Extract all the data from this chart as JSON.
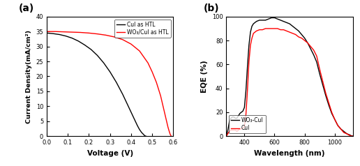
{
  "panel_a": {
    "title": "(a)",
    "xlabel": "Voltage (V)",
    "ylabel": "Current Density(mA/cm²)",
    "xlim": [
      0.0,
      0.6
    ],
    "ylim": [
      0,
      40
    ],
    "xticks": [
      0.0,
      0.1,
      0.2,
      0.3,
      0.4,
      0.5,
      0.6
    ],
    "yticks": [
      0,
      5,
      10,
      15,
      20,
      25,
      30,
      35,
      40
    ],
    "legend": [
      "CuI as HTL",
      "WO₃/CuI as HTL"
    ],
    "line_colors": [
      "black",
      "red"
    ],
    "cui_jv": {
      "v": [
        0.0,
        0.03,
        0.06,
        0.09,
        0.12,
        0.15,
        0.18,
        0.21,
        0.24,
        0.27,
        0.3,
        0.33,
        0.36,
        0.39,
        0.41,
        0.43,
        0.44,
        0.45,
        0.46,
        0.465,
        0.47
      ],
      "j": [
        34.5,
        34.3,
        34.0,
        33.5,
        32.8,
        31.8,
        30.5,
        29.0,
        27.0,
        24.5,
        21.5,
        18.0,
        14.0,
        9.5,
        6.5,
        3.5,
        2.2,
        1.2,
        0.5,
        0.1,
        0.0
      ]
    },
    "wo3cui_jv": {
      "v": [
        0.0,
        0.04,
        0.08,
        0.12,
        0.16,
        0.2,
        0.24,
        0.28,
        0.32,
        0.36,
        0.4,
        0.44,
        0.48,
        0.5,
        0.52,
        0.54,
        0.55,
        0.56,
        0.57,
        0.575,
        0.58,
        0.585,
        0.59
      ],
      "j": [
        35.0,
        35.0,
        34.9,
        34.8,
        34.7,
        34.5,
        34.2,
        33.8,
        33.2,
        32.3,
        30.8,
        28.5,
        24.5,
        21.5,
        18.0,
        13.5,
        10.5,
        7.5,
        4.5,
        3.0,
        1.8,
        0.7,
        0.0
      ]
    }
  },
  "panel_b": {
    "title": "(b)",
    "xlabel": "Wavelength (nm)",
    "ylabel": "EQE (%)",
    "xlim": [
      280,
      1120
    ],
    "ylim": [
      0,
      100
    ],
    "xticks": [
      400,
      600,
      800,
      1000
    ],
    "yticks": [
      0,
      20,
      40,
      60,
      80,
      100
    ],
    "legend": [
      "WO₃-CuI",
      "CuI"
    ],
    "line_colors": [
      "black",
      "red"
    ],
    "wo3cui_eqe": {
      "wl": [
        280,
        290,
        300,
        310,
        320,
        330,
        340,
        350,
        360,
        370,
        380,
        390,
        400,
        410,
        420,
        430,
        440,
        450,
        460,
        480,
        500,
        520,
        540,
        560,
        580,
        600,
        620,
        640,
        660,
        680,
        700,
        720,
        740,
        760,
        780,
        800,
        820,
        840,
        860,
        880,
        900,
        920,
        940,
        960,
        980,
        1000,
        1020,
        1040,
        1060,
        1080,
        1100,
        1110,
        1120
      ],
      "eqe": [
        0,
        5,
        12,
        15,
        16,
        16,
        15,
        15,
        17,
        19,
        20,
        21,
        24,
        38,
        58,
        76,
        87,
        92,
        94,
        96,
        97,
        97,
        97,
        98,
        99,
        99,
        98,
        97,
        96,
        95,
        94,
        92,
        90,
        88,
        85,
        82,
        78,
        73,
        68,
        62,
        52,
        43,
        34,
        26,
        19,
        14,
        9,
        6,
        4,
        2,
        1,
        0.3,
        0
      ]
    },
    "cui_eqe": {
      "wl": [
        280,
        290,
        300,
        310,
        320,
        330,
        340,
        350,
        360,
        370,
        380,
        390,
        400,
        410,
        420,
        430,
        440,
        450,
        460,
        480,
        500,
        520,
        540,
        560,
        580,
        600,
        620,
        640,
        660,
        680,
        700,
        720,
        740,
        760,
        780,
        800,
        820,
        840,
        860,
        880,
        900,
        920,
        940,
        960,
        980,
        1000,
        1020,
        1040,
        1060,
        1080,
        1100,
        1110,
        1120
      ],
      "eqe": [
        0,
        2,
        4,
        5,
        5,
        5,
        5,
        4,
        5,
        6,
        6,
        7,
        8,
        18,
        38,
        62,
        76,
        82,
        86,
        88,
        89,
        89,
        90,
        90,
        90,
        90,
        90,
        89,
        89,
        88,
        87,
        86,
        85,
        83,
        82,
        80,
        78,
        75,
        72,
        67,
        56,
        46,
        36,
        28,
        20,
        14,
        9,
        6,
        3,
        2,
        0.5,
        0.1,
        0
      ]
    }
  },
  "background_color": "#ffffff",
  "figure_facecolor": "#ffffff"
}
